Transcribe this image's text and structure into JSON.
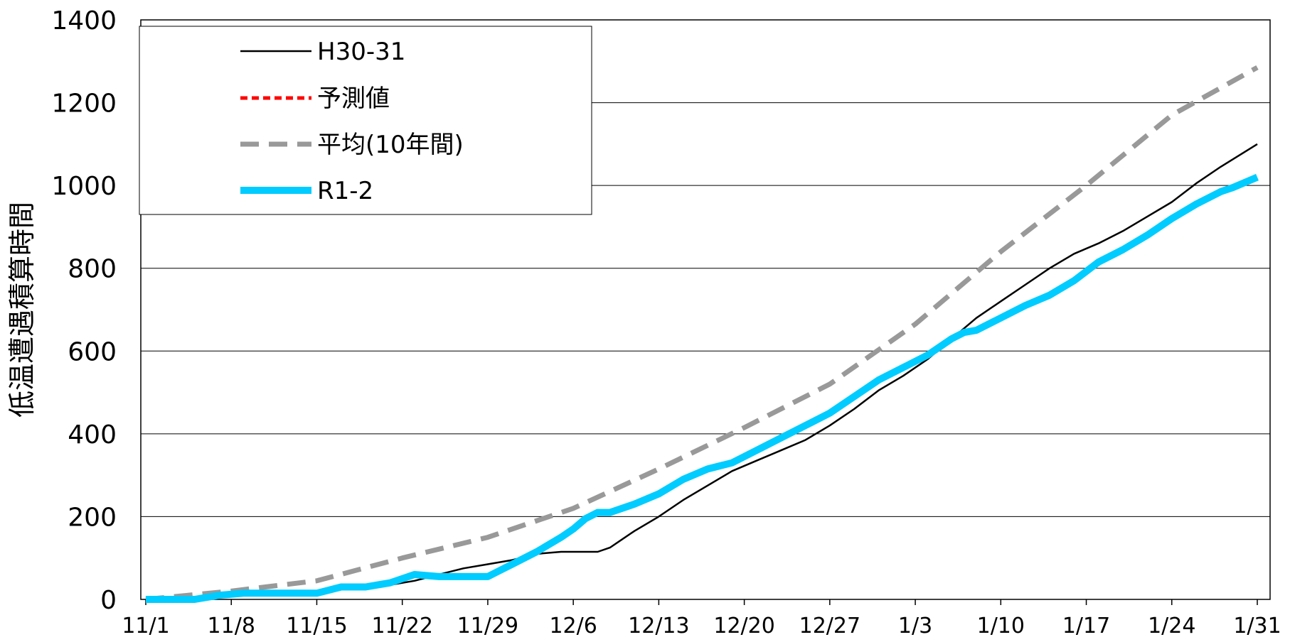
{
  "chart_data": {
    "type": "line",
    "title": "",
    "xlabel": "",
    "ylabel": "低温遭遇積算時間",
    "ylim": [
      0,
      1400
    ],
    "yticks": [
      0,
      200,
      400,
      600,
      800,
      1000,
      1200,
      1400
    ],
    "xlim": [
      0,
      91
    ],
    "xticks": [
      {
        "day": 0,
        "label": "11/1"
      },
      {
        "day": 7,
        "label": "11/8"
      },
      {
        "day": 14,
        "label": "11/15"
      },
      {
        "day": 21,
        "label": "11/22"
      },
      {
        "day": 28,
        "label": "11/29"
      },
      {
        "day": 35,
        "label": "12/6"
      },
      {
        "day": 42,
        "label": "12/13"
      },
      {
        "day": 49,
        "label": "12/20"
      },
      {
        "day": 56,
        "label": "12/27"
      },
      {
        "day": 63,
        "label": "1/3"
      },
      {
        "day": 70,
        "label": "1/10"
      },
      {
        "day": 77,
        "label": "1/17"
      },
      {
        "day": 84,
        "label": "1/24"
      },
      {
        "day": 91,
        "label": "1/31"
      }
    ],
    "grid": "horizontal",
    "legend_position": "top-left",
    "series": [
      {
        "name": "H30-31",
        "color": "#000000",
        "style": "solid-thin",
        "x": [
          0,
          2,
          4,
          6,
          8,
          10,
          12,
          14,
          16,
          18,
          19,
          20,
          22,
          24,
          26,
          28,
          30,
          32,
          34,
          36,
          37,
          38,
          40,
          42,
          44,
          46,
          48,
          50,
          52,
          54,
          56,
          58,
          60,
          62,
          64,
          66,
          68,
          70,
          72,
          74,
          76,
          78,
          80,
          82,
          84,
          86,
          88,
          91
        ],
        "y": [
          0,
          5,
          6,
          10,
          15,
          20,
          20,
          20,
          25,
          25,
          30,
          35,
          45,
          60,
          75,
          85,
          95,
          110,
          115,
          115,
          115,
          125,
          165,
          200,
          240,
          275,
          310,
          335,
          360,
          385,
          420,
          460,
          505,
          540,
          580,
          630,
          680,
          720,
          760,
          800,
          835,
          860,
          890,
          925,
          960,
          1005,
          1045,
          1100
        ]
      },
      {
        "name": "予測値",
        "color": "#ff0000",
        "style": "dashed",
        "x": [],
        "y": []
      },
      {
        "name": "平均(10年間)",
        "color": "#999999",
        "style": "dashed-thick",
        "x": [
          0,
          7,
          14,
          21,
          28,
          35,
          42,
          49,
          56,
          63,
          70,
          77,
          84,
          91
        ],
        "y": [
          0,
          20,
          45,
          100,
          150,
          220,
          315,
          415,
          520,
          665,
          840,
          1000,
          1170,
          1285
        ]
      },
      {
        "name": "R1-2",
        "color": "#00ccff",
        "style": "solid-thick",
        "x": [
          0,
          4,
          6,
          8,
          10,
          12,
          14,
          16,
          18,
          19,
          20,
          22,
          24,
          26,
          28,
          29,
          30,
          32,
          34,
          35,
          36,
          37,
          38,
          40,
          42,
          44,
          46,
          48,
          50,
          52,
          54,
          56,
          58,
          60,
          62,
          64,
          66,
          67,
          68,
          70,
          72,
          74,
          76,
          78,
          80,
          82,
          84,
          86,
          88,
          89,
          91
        ],
        "y": [
          0,
          0,
          10,
          15,
          15,
          15,
          15,
          30,
          30,
          35,
          40,
          60,
          55,
          55,
          55,
          70,
          85,
          115,
          150,
          170,
          195,
          210,
          210,
          230,
          255,
          290,
          315,
          330,
          360,
          390,
          420,
          450,
          490,
          530,
          560,
          590,
          630,
          645,
          650,
          680,
          710,
          735,
          770,
          815,
          845,
          880,
          920,
          955,
          985,
          995,
          1020
        ]
      }
    ]
  }
}
